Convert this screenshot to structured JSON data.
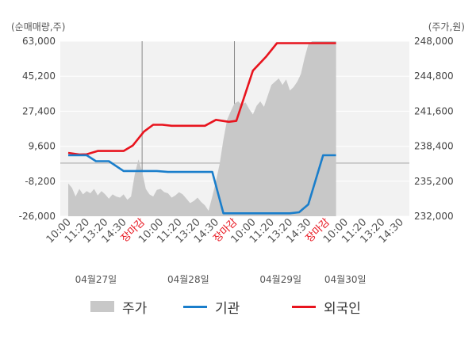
{
  "chart_data": {
    "type": "line",
    "left_unit": "(순매매량,주)",
    "right_unit": "(주가,원)",
    "left_ticks": [
      "63,000",
      "45,200",
      "27,400",
      "9,600",
      "-8,200",
      "-26,000"
    ],
    "left_tick_values": [
      63000,
      45200,
      27400,
      9600,
      -8200,
      -26000
    ],
    "right_ticks": [
      "248,000",
      "244,800",
      "241,600",
      "238,400",
      "235,200",
      "232,000"
    ],
    "right_tick_values": [
      248000,
      244800,
      241600,
      238400,
      235200,
      232000
    ],
    "ylim_left": [
      -26000,
      63000
    ],
    "ylim_right": [
      232000,
      248000
    ],
    "x_labels": [
      "10:00",
      "11:20",
      "13:20",
      "14:30",
      "장마감",
      "10:00",
      "11:20",
      "13:20",
      "14:30",
      "장마감",
      "10:00",
      "11:20",
      "13:20",
      "14:30",
      "장마감",
      "10:00",
      "11:20",
      "13:20",
      "14:30"
    ],
    "x_label_red": [
      false,
      false,
      false,
      false,
      true,
      false,
      false,
      false,
      false,
      true,
      false,
      false,
      false,
      false,
      true,
      false,
      false,
      false,
      false
    ],
    "dates": [
      "04월27일",
      "04월28일",
      "04월29일",
      "04월30일"
    ],
    "legend": {
      "price": "주가",
      "inst": "기관",
      "foreign": "외국인"
    },
    "colors": {
      "price_area": "#c8c8c8",
      "inst_line": "#1a7ecb",
      "foreign_line": "#e8141e",
      "grid": "#ffffff",
      "plot_bg": "#f2f2f2"
    },
    "series": [
      {
        "name": "외국인",
        "axis": "left",
        "x": [
          0,
          0.6,
          1.0,
          1.6,
          2.2,
          3.0,
          3.5,
          4.1,
          4.6,
          5.1,
          5.6,
          6.0,
          6.8,
          7.4,
          8.0,
          8.7,
          9.1,
          10.0,
          10.7,
          11.3,
          12.0,
          12.5,
          12.9,
          13.6,
          14.0,
          14.5
        ],
        "y": [
          6200,
          5400,
          5500,
          7200,
          7200,
          7200,
          10000,
          17000,
          20500,
          20500,
          20000,
          20000,
          20000,
          20000,
          23000,
          22000,
          22500,
          48000,
          55000,
          62000,
          62000,
          62000,
          62000,
          62000,
          62000,
          62000
        ]
      },
      {
        "name": "기관",
        "axis": "left",
        "x": [
          0,
          0.6,
          1.0,
          1.5,
          2.2,
          3.0,
          3.6,
          4.2,
          4.8,
          5.4,
          6.0,
          6.6,
          7.2,
          7.8,
          8.4,
          9.0,
          9.6,
          10.2,
          10.8,
          11.4,
          12.0,
          12.5,
          13.0,
          13.8,
          14.5
        ],
        "y": [
          5000,
          5000,
          5000,
          2000,
          2000,
          -3000,
          -3000,
          -3000,
          -3000,
          -3500,
          -3500,
          -3500,
          -3500,
          -3500,
          -24500,
          -24500,
          -24500,
          -24500,
          -24500,
          -24500,
          -24500,
          -24000,
          -20000,
          5000,
          5000
        ]
      }
    ],
    "price_series": {
      "name": "주가",
      "axis": "right",
      "x": [
        0,
        0.2,
        0.4,
        0.6,
        0.8,
        1.0,
        1.2,
        1.4,
        1.6,
        1.8,
        2.0,
        2.2,
        2.4,
        2.6,
        2.8,
        3.0,
        3.2,
        3.4,
        3.6,
        3.8,
        4.0,
        4.2,
        4.4,
        4.6,
        4.8,
        5.0,
        5.2,
        5.4,
        5.6,
        5.8,
        6.0,
        6.2,
        6.4,
        6.6,
        6.8,
        7.0,
        7.2,
        7.4,
        7.6,
        7.8,
        8.0,
        8.2,
        8.4,
        8.6,
        8.8,
        9.0,
        9.2,
        9.4,
        9.6,
        9.8,
        10.0,
        10.2,
        10.4,
        10.6,
        10.8,
        11.0,
        11.2,
        11.4,
        11.6,
        11.8,
        12.0,
        12.2,
        12.4,
        12.6,
        12.8,
        13.0,
        13.2,
        13.4,
        13.6,
        13.8,
        14.0,
        14.2,
        14.4,
        14.5
      ],
      "y": [
        235000,
        234600,
        233800,
        234500,
        234000,
        234300,
        234100,
        234500,
        233900,
        234300,
        234000,
        233600,
        234000,
        233800,
        233700,
        234000,
        233500,
        233800,
        235800,
        237200,
        236100,
        234500,
        234000,
        233800,
        234400,
        234500,
        234200,
        234100,
        233700,
        233900,
        234200,
        234000,
        233600,
        233200,
        233400,
        233700,
        233300,
        233000,
        232500,
        233800,
        235200,
        236800,
        239000,
        240800,
        241600,
        242300,
        242500,
        242200,
        242400,
        241800,
        241300,
        242100,
        242500,
        242000,
        243000,
        244000,
        244300,
        244600,
        244000,
        244500,
        243500,
        243800,
        244300,
        245000,
        246500,
        247700,
        248000,
        248000,
        248000,
        248000,
        248000,
        248000,
        248000,
        248000
      ]
    }
  }
}
